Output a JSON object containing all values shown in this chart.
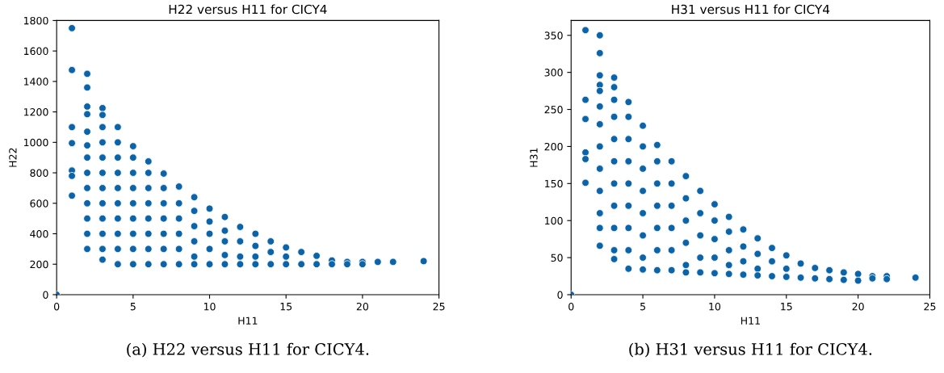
{
  "chart_data": [
    {
      "type": "scatter",
      "title": "H22 versus H11 for CICY4",
      "xlabel": "H11",
      "ylabel": "H22",
      "series": [
        {
          "color": "#0b63a8",
          "x": [
            0,
            1,
            1,
            1,
            1,
            1,
            1,
            1,
            2,
            2,
            2,
            2,
            2,
            2,
            2,
            2,
            2,
            2,
            2,
            2,
            2,
            3,
            3,
            3,
            3,
            3,
            3,
            3,
            3,
            3,
            3,
            3,
            3,
            4,
            4,
            4,
            4,
            4,
            4,
            4,
            4,
            4,
            4,
            5,
            5,
            5,
            5,
            5,
            5,
            5,
            5,
            5,
            6,
            6,
            6,
            6,
            6,
            6,
            6,
            6,
            7,
            7,
            7,
            7,
            7,
            7,
            7,
            8,
            8,
            8,
            8,
            8,
            8,
            9,
            9,
            9,
            9,
            9,
            9,
            10,
            10,
            10,
            10,
            10,
            11,
            11,
            11,
            11,
            11,
            12,
            12,
            12,
            12,
            13,
            13,
            13,
            13,
            14,
            14,
            14,
            15,
            15,
            15,
            16,
            16,
            17,
            17,
            18,
            18,
            19,
            19,
            20,
            20,
            21,
            22,
            24
          ],
          "values": [
            0,
            1750,
            1475,
            1100,
            995,
            815,
            780,
            650,
            1450,
            1360,
            1235,
            1185,
            1070,
            980,
            900,
            800,
            700,
            600,
            500,
            400,
            300,
            1225,
            1180,
            1100,
            1000,
            900,
            800,
            700,
            600,
            500,
            400,
            300,
            230,
            1100,
            1000,
            900,
            800,
            700,
            600,
            500,
            400,
            300,
            200,
            975,
            900,
            800,
            700,
            600,
            500,
            400,
            300,
            200,
            875,
            800,
            700,
            600,
            500,
            400,
            300,
            200,
            795,
            700,
            600,
            500,
            400,
            300,
            200,
            710,
            600,
            500,
            400,
            300,
            200,
            640,
            550,
            450,
            350,
            250,
            200,
            565,
            480,
            400,
            300,
            200,
            510,
            420,
            350,
            260,
            200,
            445,
            350,
            250,
            200,
            400,
            320,
            250,
            200,
            350,
            280,
            200,
            310,
            250,
            200,
            280,
            200,
            255,
            200,
            225,
            200,
            215,
            200,
            215,
            200,
            215,
            215,
            220
          ]
        }
      ],
      "xlim": [
        0,
        25
      ],
      "xticks": [
        0,
        5,
        10,
        15,
        20,
        25
      ],
      "ylim": [
        0,
        1800
      ],
      "yticks": [
        0,
        200,
        400,
        600,
        800,
        1000,
        1200,
        1400,
        1600,
        1800
      ],
      "grid": false,
      "marker": "circle",
      "annotations": [
        "(a) H22 versus H11 for CICY4."
      ]
    },
    {
      "type": "scatter",
      "title": "H31 versus H11 for CICY4",
      "xlabel": "H11",
      "ylabel": "H31",
      "series": [
        {
          "color": "#0b63a8",
          "x": [
            0,
            1,
            1,
            1,
            1,
            1,
            1,
            2,
            2,
            2,
            2,
            2,
            2,
            2,
            2,
            2,
            2,
            2,
            2,
            2,
            3,
            3,
            3,
            3,
            3,
            3,
            3,
            3,
            3,
            3,
            3,
            4,
            4,
            4,
            4,
            4,
            4,
            4,
            4,
            4,
            5,
            5,
            5,
            5,
            5,
            5,
            5,
            5,
            6,
            6,
            6,
            6,
            6,
            6,
            6,
            7,
            7,
            7,
            7,
            7,
            7,
            8,
            8,
            8,
            8,
            8,
            8,
            9,
            9,
            9,
            9,
            9,
            10,
            10,
            10,
            10,
            10,
            11,
            11,
            11,
            11,
            11,
            12,
            12,
            12,
            12,
            13,
            13,
            13,
            13,
            14,
            14,
            14,
            15,
            15,
            15,
            16,
            16,
            17,
            17,
            18,
            18,
            19,
            19,
            20,
            20,
            21,
            21,
            22,
            22,
            24
          ],
          "values": [
            0,
            357,
            263,
            237,
            192,
            183,
            151,
            350,
            326,
            296,
            283,
            275,
            254,
            230,
            200,
            170,
            140,
            110,
            90,
            66,
            293,
            280,
            263,
            240,
            210,
            180,
            150,
            120,
            90,
            60,
            48,
            260,
            240,
            210,
            180,
            150,
            120,
            90,
            60,
            35,
            228,
            200,
            170,
            140,
            110,
            80,
            50,
            34,
            202,
            180,
            150,
            120,
            90,
            60,
            33,
            180,
            150,
            120,
            90,
            60,
            33,
            160,
            130,
            100,
            70,
            40,
            30,
            140,
            110,
            80,
            50,
            30,
            122,
            100,
            75,
            50,
            29,
            105,
            85,
            60,
            40,
            28,
            88,
            65,
            45,
            27,
            76,
            55,
            35,
            26,
            63,
            45,
            25,
            53,
            35,
            24,
            42,
            23,
            36,
            22,
            33,
            21,
            30,
            20,
            28,
            19,
            25,
            22,
            25,
            21,
            23
          ]
        }
      ],
      "xlim": [
        0,
        25
      ],
      "xticks": [
        0,
        5,
        10,
        15,
        20,
        25
      ],
      "ylim": [
        0,
        370
      ],
      "yticks": [
        0,
        50,
        100,
        150,
        200,
        250,
        300,
        350
      ],
      "grid": false,
      "marker": "circle",
      "annotations": [
        "(b) H31 versus H11 for CICY4."
      ]
    }
  ]
}
